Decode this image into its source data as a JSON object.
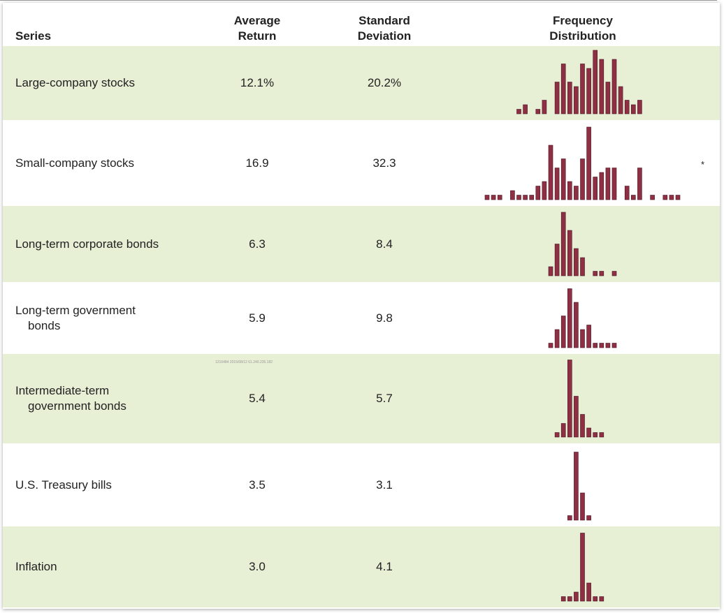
{
  "header": {
    "series": "Series",
    "average_return": [
      "Average",
      "Return"
    ],
    "standard_deviation": [
      "Standard",
      "Deviation"
    ],
    "frequency_distribution": [
      "Frequency",
      "Distribution"
    ]
  },
  "rows": [
    {
      "series": [
        "Large-company stocks"
      ],
      "average_return": "12.1%",
      "standard_deviation": "20.2%",
      "frequency": [
        0,
        0,
        0,
        0,
        0,
        1,
        2,
        0,
        1,
        3,
        0,
        7,
        11,
        7,
        6,
        11,
        10,
        14,
        12,
        7,
        12,
        6,
        3,
        2,
        3,
        0,
        0,
        0,
        0,
        0,
        0
      ]
    },
    {
      "series": [
        "Small-company stocks"
      ],
      "average_return": "16.9",
      "standard_deviation": "32.3",
      "note": "*",
      "frequency": [
        1,
        1,
        1,
        0,
        2,
        1,
        1,
        1,
        3,
        4,
        12,
        7,
        9,
        4,
        3,
        9,
        16,
        5,
        6,
        7,
        7,
        0,
        3,
        1,
        7,
        0,
        1,
        0,
        1,
        1,
        1
      ]
    },
    {
      "series": [
        "Long-term corporate bonds"
      ],
      "average_return": "6.3",
      "standard_deviation": "8.4",
      "frequency": [
        0,
        0,
        0,
        0,
        0,
        0,
        0,
        0,
        0,
        0,
        2,
        7,
        14,
        10,
        6,
        4,
        0,
        1,
        1,
        0,
        1,
        0,
        0,
        0,
        0,
        0,
        0,
        0,
        0,
        0,
        0
      ]
    },
    {
      "series": [
        "Long-term government",
        "bonds"
      ],
      "average_return": "5.9",
      "standard_deviation": "9.8",
      "frequency": [
        0,
        0,
        0,
        0,
        0,
        0,
        0,
        0,
        0,
        0,
        1,
        4,
        7,
        13,
        10,
        4,
        5,
        1,
        1,
        1,
        1,
        0,
        0,
        0,
        0,
        0,
        0,
        0,
        0,
        0,
        0
      ]
    },
    {
      "series": [
        "Intermediate-term",
        "government bonds"
      ],
      "average_return": "5.4",
      "standard_deviation": "5.7",
      "frequency": [
        0,
        0,
        0,
        0,
        0,
        0,
        0,
        0,
        0,
        0,
        0,
        1,
        3,
        17,
        9,
        5,
        2,
        1,
        1,
        0,
        0,
        0,
        0,
        0,
        0,
        0,
        0,
        0,
        0,
        0,
        0
      ]
    },
    {
      "series": [
        "U.S. Treasury bills"
      ],
      "average_return": "3.5",
      "standard_deviation": "3.1",
      "frequency": [
        0,
        0,
        0,
        0,
        0,
        0,
        0,
        0,
        0,
        0,
        0,
        0,
        0,
        1,
        15,
        6,
        1,
        0,
        0,
        0,
        0,
        0,
        0,
        0,
        0,
        0,
        0,
        0,
        0,
        0,
        0
      ]
    },
    {
      "series": [
        "Inflation"
      ],
      "average_return": "3.0",
      "standard_deviation": "4.1",
      "frequency": [
        0,
        0,
        0,
        0,
        0,
        0,
        0,
        0,
        0,
        0,
        0,
        0,
        1,
        1,
        2,
        15,
        4,
        1,
        1,
        0,
        0,
        0,
        0,
        0,
        0,
        0,
        0,
        0,
        0,
        0,
        0
      ]
    }
  ],
  "watermark": "1216484 2015/08/12 61.240.235.182"
}
